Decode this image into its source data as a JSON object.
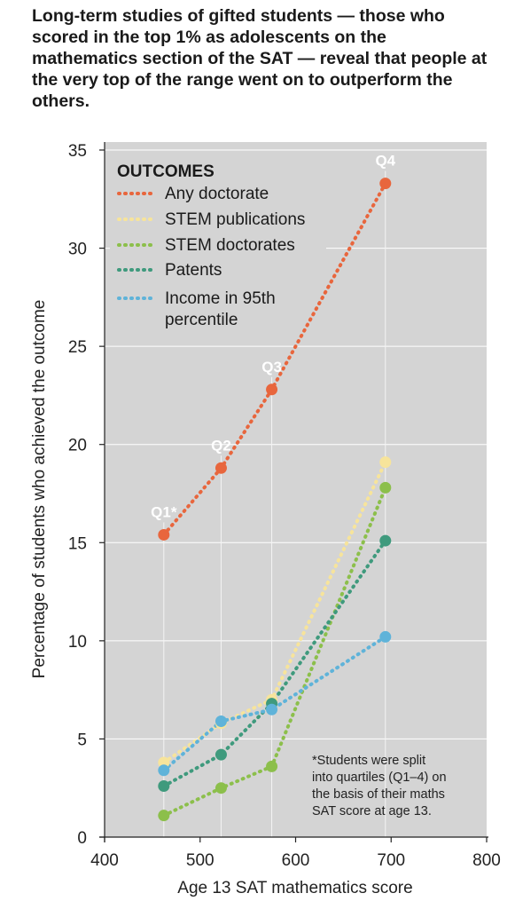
{
  "headline": "Long-term studies of gifted students — those who scored in the top 1% as adolescents on the mathematics section of the SAT — reveal that people at the very top of the range went on to outperform the others.",
  "chart_data": {
    "type": "line",
    "xlabel": "Age 13 SAT mathematics score",
    "ylabel": "Percentage of students who achieved the outcome",
    "xlim": [
      400,
      800
    ],
    "ylim": [
      0,
      35
    ],
    "xticks": [
      400,
      500,
      600,
      700,
      800
    ],
    "yticks": [
      0,
      5,
      10,
      15,
      20,
      25,
      30,
      35
    ],
    "grid": "horizontal",
    "legend": {
      "title": "OUTCOMES",
      "placement": "top-left",
      "entries": [
        "Any doctorate",
        "STEM publications",
        "STEM doctorates",
        "Patents",
        "Income in 95th percentile"
      ]
    },
    "quartiles": [
      {
        "label": "Q1*",
        "x": 462
      },
      {
        "label": "Q2",
        "x": 522
      },
      {
        "label": "Q3",
        "x": 575
      },
      {
        "label": "Q4",
        "x": 694
      }
    ],
    "series": [
      {
        "name": "Any doctorate",
        "color": "#e8663d",
        "points": [
          [
            462,
            15.4
          ],
          [
            522,
            18.8
          ],
          [
            575,
            22.8
          ],
          [
            694,
            33.3
          ]
        ]
      },
      {
        "name": "STEM publications",
        "color": "#f7e49b",
        "points": [
          [
            462,
            3.8
          ],
          [
            522,
            5.8
          ],
          [
            575,
            7.0
          ],
          [
            694,
            19.1
          ]
        ]
      },
      {
        "name": "STEM doctorates",
        "color": "#8cbf4b",
        "points": [
          [
            462,
            1.1
          ],
          [
            522,
            2.5
          ],
          [
            575,
            3.6
          ],
          [
            694,
            17.8
          ]
        ]
      },
      {
        "name": "Patents",
        "color": "#3f9a7d",
        "points": [
          [
            462,
            2.6
          ],
          [
            522,
            4.2
          ],
          [
            575,
            6.8
          ],
          [
            694,
            15.1
          ]
        ]
      },
      {
        "name": "Income in 95th percentile",
        "color": "#5fb3d9",
        "points": [
          [
            462,
            3.4
          ],
          [
            522,
            5.9
          ],
          [
            575,
            6.5
          ],
          [
            694,
            10.2
          ]
        ]
      }
    ],
    "footnote": [
      "*Students were split",
      "into quartiles (Q1–4) on",
      "the basis of their maths",
      "SAT score at age 13."
    ]
  }
}
